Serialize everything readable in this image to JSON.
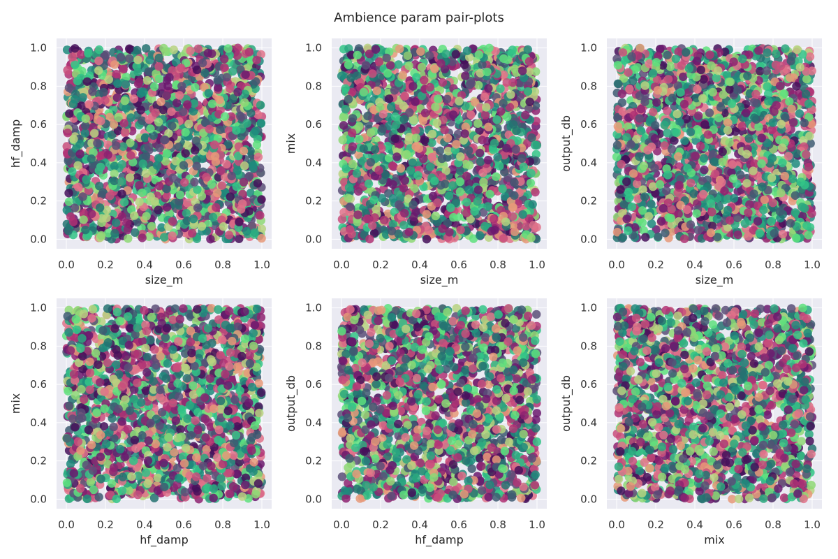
{
  "figure": {
    "title": "Ambience param pair-plots",
    "background": "#ffffff",
    "axes_background": "#eaeaf2",
    "grid_color": "#ffffff"
  },
  "palette": [
    "#45105a",
    "#6b1a6e",
    "#8e2371",
    "#b03274",
    "#c94f7c",
    "#e0728a",
    "#e69979",
    "#b7d280",
    "#8ed875",
    "#5ee07e",
    "#33c487",
    "#2aa87f",
    "#1f8b7d",
    "#247271",
    "#3e5a72",
    "#5a4f78"
  ],
  "chart_data": [
    {
      "type": "scatter",
      "title": "",
      "xlabel": "size_m",
      "ylabel": "hf_damp",
      "xlim": [
        -0.05,
        1.05
      ],
      "ylim": [
        -0.05,
        1.05
      ],
      "xticks": [
        "0.0",
        "0.2",
        "0.4",
        "0.6",
        "0.8",
        "1.0"
      ],
      "yticks": [
        "0.0",
        "0.2",
        "0.4",
        "0.6",
        "0.8",
        "1.0"
      ],
      "grid": true,
      "distribution": "uniform",
      "x_range": [
        0,
        1
      ],
      "y_range": [
        0,
        1
      ],
      "n_points": 2000,
      "seed": 11
    },
    {
      "type": "scatter",
      "title": "",
      "xlabel": "size_m",
      "ylabel": "mix",
      "xlim": [
        -0.05,
        1.05
      ],
      "ylim": [
        -0.05,
        1.05
      ],
      "xticks": [
        "0.0",
        "0.2",
        "0.4",
        "0.6",
        "0.8",
        "1.0"
      ],
      "yticks": [
        "0.0",
        "0.2",
        "0.4",
        "0.6",
        "0.8",
        "1.0"
      ],
      "grid": true,
      "distribution": "uniform",
      "x_range": [
        0,
        1
      ],
      "y_range": [
        0,
        1
      ],
      "n_points": 2000,
      "seed": 23
    },
    {
      "type": "scatter",
      "title": "",
      "xlabel": "size_m",
      "ylabel": "output_db",
      "xlim": [
        -0.05,
        1.05
      ],
      "ylim": [
        -0.05,
        1.05
      ],
      "xticks": [
        "0.0",
        "0.2",
        "0.4",
        "0.6",
        "0.8",
        "1.0"
      ],
      "yticks": [
        "0.0",
        "0.2",
        "0.4",
        "0.6",
        "0.8",
        "1.0"
      ],
      "grid": true,
      "distribution": "uniform",
      "x_range": [
        0,
        1
      ],
      "y_range": [
        0,
        1
      ],
      "n_points": 2000,
      "seed": 37
    },
    {
      "type": "scatter",
      "title": "",
      "xlabel": "hf_damp",
      "ylabel": "mix",
      "xlim": [
        -0.05,
        1.05
      ],
      "ylim": [
        -0.05,
        1.05
      ],
      "xticks": [
        "0.0",
        "0.2",
        "0.4",
        "0.6",
        "0.8",
        "1.0"
      ],
      "yticks": [
        "0.0",
        "0.2",
        "0.4",
        "0.6",
        "0.8",
        "1.0"
      ],
      "grid": true,
      "distribution": "uniform",
      "x_range": [
        0,
        1
      ],
      "y_range": [
        0,
        1
      ],
      "n_points": 2000,
      "seed": 41
    },
    {
      "type": "scatter",
      "title": "",
      "xlabel": "hf_damp",
      "ylabel": "output_db",
      "xlim": [
        -0.05,
        1.05
      ],
      "ylim": [
        -0.05,
        1.05
      ],
      "xticks": [
        "0.0",
        "0.2",
        "0.4",
        "0.6",
        "0.8",
        "1.0"
      ],
      "yticks": [
        "0.0",
        "0.2",
        "0.4",
        "0.6",
        "0.8",
        "1.0"
      ],
      "grid": true,
      "distribution": "uniform",
      "x_range": [
        0,
        1
      ],
      "y_range": [
        0,
        1
      ],
      "n_points": 2000,
      "seed": 53
    },
    {
      "type": "scatter",
      "title": "",
      "xlabel": "mix",
      "ylabel": "output_db",
      "xlim": [
        -0.05,
        1.05
      ],
      "ylim": [
        -0.05,
        1.05
      ],
      "xticks": [
        "0.0",
        "0.2",
        "0.4",
        "0.6",
        "0.8",
        "1.0"
      ],
      "yticks": [
        "0.0",
        "0.2",
        "0.4",
        "0.6",
        "0.8",
        "1.0"
      ],
      "grid": true,
      "distribution": "uniform",
      "x_range": [
        0,
        1
      ],
      "y_range": [
        0,
        1
      ],
      "n_points": 2000,
      "seed": 67
    }
  ]
}
